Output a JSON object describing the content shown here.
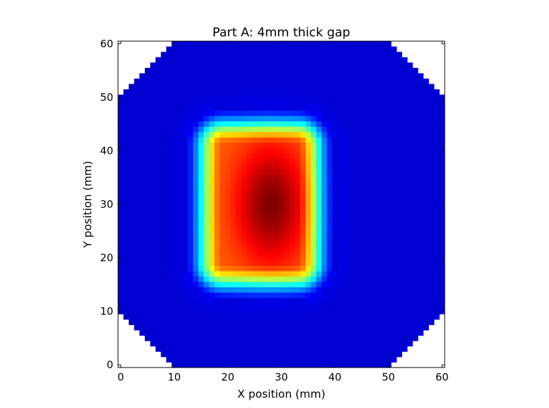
{
  "chart_data": {
    "type": "heatmap",
    "title": "Part A: 4mm thick gap",
    "xlabel": "X position (mm)",
    "ylabel": "Y position (mm)",
    "xlim": [
      -0.5,
      60.5
    ],
    "ylim": [
      60.5,
      -0.5
    ],
    "xticks": [
      0,
      10,
      20,
      30,
      40,
      50,
      60
    ],
    "yticks": [
      0,
      10,
      20,
      30,
      40,
      50,
      60
    ],
    "colormap": "jet",
    "grid": false,
    "grid_size": [
      61,
      61
    ],
    "mask": "octagon with 10 mm corner cut-offs; outside cells blank",
    "hot_region": {
      "shape": "rounded rectangle",
      "x_range": [
        19,
        33
      ],
      "y_range": [
        19,
        41
      ],
      "peak_value": 1.0,
      "peak_at": [
        28,
        30
      ]
    },
    "background_value": 0.08
  }
}
